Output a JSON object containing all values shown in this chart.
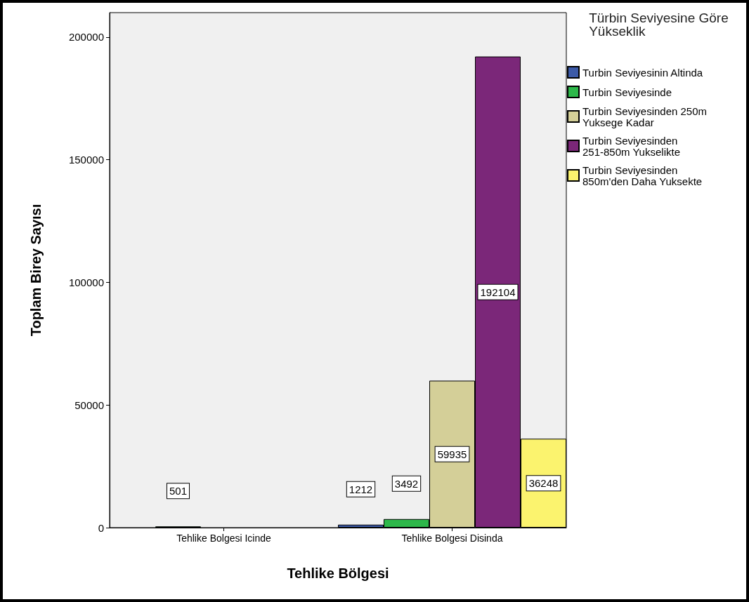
{
  "chart_data": {
    "type": "bar",
    "xlabel": "Tehlike Bölgesi",
    "ylabel": "Toplam Birey Sayısı",
    "legend_title": "Türbin Seviyesine Göre Yükseklik",
    "categories": [
      "Tehlike Bolgesi Icinde",
      "Tehlike Bolgesi Disinda"
    ],
    "series": [
      {
        "name": "Turbin Seviyesinin Altinda",
        "color": "#3c5aa8",
        "values": [
          null,
          1212
        ]
      },
      {
        "name": "Turbin Seviyesinde",
        "color": "#2db84a",
        "values": [
          501,
          3492
        ]
      },
      {
        "name": "Turbin Seviyesinden 250m Yuksege Kadar",
        "color": "#d4cf98",
        "values": [
          null,
          59935
        ]
      },
      {
        "name": "Turbin Seviyesinden 251-850m Yukselikte",
        "color": "#7b2779",
        "values": [
          null,
          192104
        ]
      },
      {
        "name": "Turbin Seviyesinden 850m'den Daha Yuksekte",
        "color": "#fbf36e",
        "values": [
          null,
          36248
        ]
      }
    ],
    "ylim": [
      0,
      210000
    ],
    "yticks": [
      0,
      50000,
      100000,
      150000,
      200000
    ],
    "grid": false,
    "legend": "right",
    "data_labels": true
  }
}
